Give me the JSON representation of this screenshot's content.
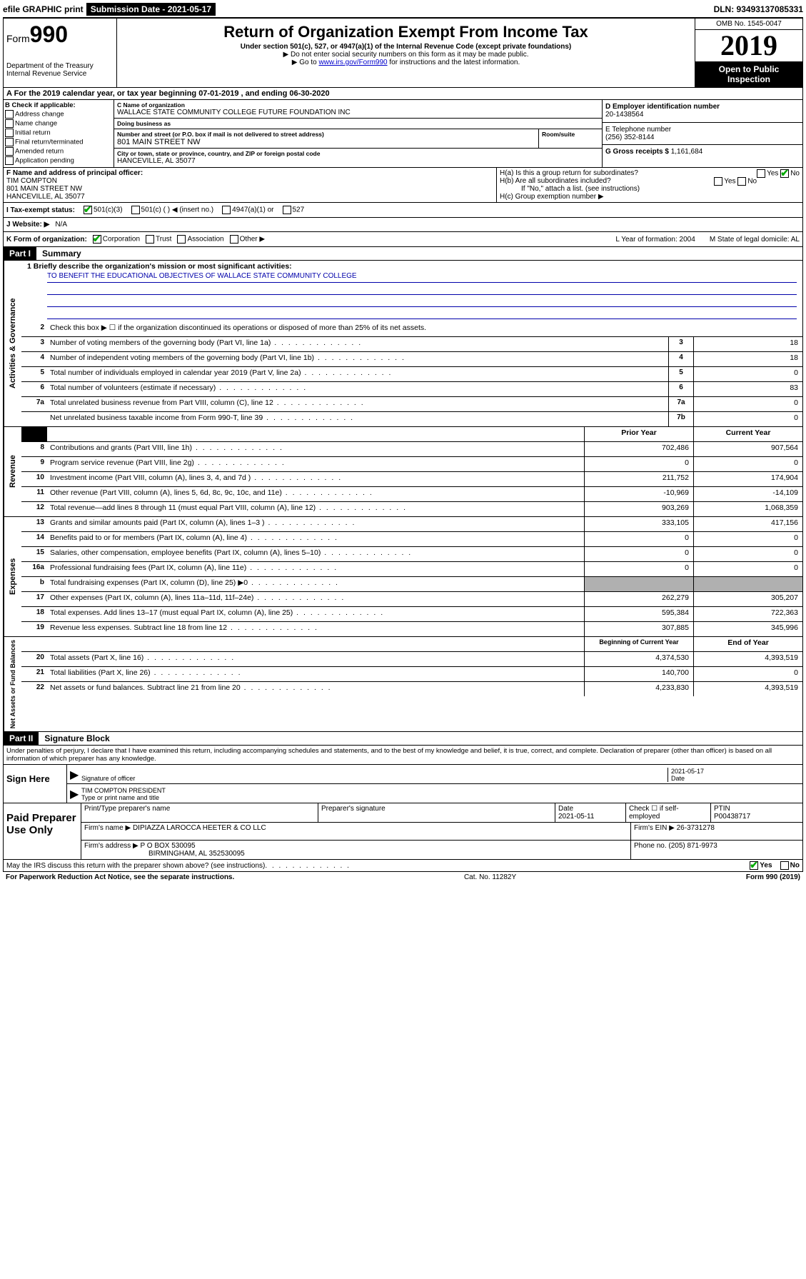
{
  "top": {
    "efile": "efile GRAPHIC print",
    "submission": "Submission Date - 2021-05-17",
    "dln": "DLN: 93493137085331"
  },
  "header": {
    "form_prefix": "Form",
    "form_number": "990",
    "dept": "Department of the Treasury\nInternal Revenue Service",
    "title": "Return of Organization Exempt From Income Tax",
    "subtitle": "Under section 501(c), 527, or 4947(a)(1) of the Internal Revenue Code (except private foundations)",
    "note1": "▶ Do not enter social security numbers on this form as it may be made public.",
    "note2_pre": "▶ Go to ",
    "note2_link": "www.irs.gov/Form990",
    "note2_post": " for instructions and the latest information.",
    "omb": "OMB No. 1545-0047",
    "year": "2019",
    "open": "Open to Public Inspection"
  },
  "sectionA": "A   For the 2019 calendar year, or tax year beginning 07-01-2019    , and ending 06-30-2020",
  "boxB": {
    "label": "B Check if applicable:",
    "opts": [
      "Address change",
      "Name change",
      "Initial return",
      "Final return/terminated",
      "Amended return",
      "Application pending"
    ]
  },
  "boxC": {
    "name_label": "C Name of organization",
    "name": "WALLACE STATE COMMUNITY COLLEGE FUTURE FOUNDATION INC",
    "dba_label": "Doing business as",
    "dba": "",
    "addr_label": "Number and street (or P.O. box if mail is not delivered to street address)",
    "room_label": "Room/suite",
    "addr": "801 MAIN STREET NW",
    "city_label": "City or town, state or province, country, and ZIP or foreign postal code",
    "city": "HANCEVILLE, AL  35077"
  },
  "boxD": {
    "label": "D Employer identification number",
    "val": "20-1438564"
  },
  "boxE": {
    "label": "E Telephone number",
    "val": "(256) 352-8144"
  },
  "boxG": {
    "label": "G Gross receipts $",
    "val": "1,161,684"
  },
  "boxF": {
    "label": "F Name and address of principal officer:",
    "name": "TIM COMPTON",
    "addr1": "801 MAIN STREET NW",
    "addr2": "HANCEVILLE, AL  35077"
  },
  "boxH": {
    "ha": "H(a)  Is this a group return for subordinates?",
    "hb": "H(b)  Are all subordinates included?",
    "hb_note": "If \"No,\" attach a list. (see instructions)",
    "hc": "H(c)  Group exemption number ▶"
  },
  "taxExempt": {
    "label": "I   Tax-exempt status:",
    "opt1": "501(c)(3)",
    "opt2": "501(c) (   ) ◀ (insert no.)",
    "opt3": "4947(a)(1) or",
    "opt4": "527"
  },
  "website": {
    "label": "J   Website: ▶",
    "val": "N/A"
  },
  "boxK": {
    "label": "K Form of organization:",
    "opts": [
      "Corporation",
      "Trust",
      "Association",
      "Other ▶"
    ],
    "L": "L Year of formation: 2004",
    "M": "M State of legal domicile: AL"
  },
  "part1": {
    "header": "Part I",
    "title": "Summary",
    "line1_label": "1  Briefly describe the organization's mission or most significant activities:",
    "line1_val": "TO BENEFIT THE EDUCATIONAL OBJECTIVES OF WALLACE STATE COMMUNITY COLLEGE",
    "line2": "Check this box ▶ ☐  if the organization discontinued its operations or disposed of more than 25% of its net assets.",
    "governance": [
      {
        "n": "3",
        "d": "Number of voting members of the governing body (Part VI, line 1a)",
        "b": "3",
        "v": "18"
      },
      {
        "n": "4",
        "d": "Number of independent voting members of the governing body (Part VI, line 1b)",
        "b": "4",
        "v": "18"
      },
      {
        "n": "5",
        "d": "Total number of individuals employed in calendar year 2019 (Part V, line 2a)",
        "b": "5",
        "v": "0"
      },
      {
        "n": "6",
        "d": "Total number of volunteers (estimate if necessary)",
        "b": "6",
        "v": "83"
      },
      {
        "n": "7a",
        "d": "Total unrelated business revenue from Part VIII, column (C), line 12",
        "b": "7a",
        "v": "0"
      },
      {
        "n": "",
        "d": "Net unrelated business taxable income from Form 990-T, line 39",
        "b": "7b",
        "v": "0"
      }
    ],
    "rev_hdr": {
      "prior": "Prior Year",
      "curr": "Current Year"
    },
    "revenue": [
      {
        "n": "8",
        "d": "Contributions and grants (Part VIII, line 1h)",
        "p": "702,486",
        "c": "907,564"
      },
      {
        "n": "9",
        "d": "Program service revenue (Part VIII, line 2g)",
        "p": "0",
        "c": "0"
      },
      {
        "n": "10",
        "d": "Investment income (Part VIII, column (A), lines 3, 4, and 7d )",
        "p": "211,752",
        "c": "174,904"
      },
      {
        "n": "11",
        "d": "Other revenue (Part VIII, column (A), lines 5, 6d, 8c, 9c, 10c, and 11e)",
        "p": "-10,969",
        "c": "-14,109"
      },
      {
        "n": "12",
        "d": "Total revenue—add lines 8 through 11 (must equal Part VIII, column (A), line 12)",
        "p": "903,269",
        "c": "1,068,359"
      }
    ],
    "expenses": [
      {
        "n": "13",
        "d": "Grants and similar amounts paid (Part IX, column (A), lines 1–3 )",
        "p": "333,105",
        "c": "417,156"
      },
      {
        "n": "14",
        "d": "Benefits paid to or for members (Part IX, column (A), line 4)",
        "p": "0",
        "c": "0"
      },
      {
        "n": "15",
        "d": "Salaries, other compensation, employee benefits (Part IX, column (A), lines 5–10)",
        "p": "0",
        "c": "0"
      },
      {
        "n": "16a",
        "d": "Professional fundraising fees (Part IX, column (A), line 11e)",
        "p": "0",
        "c": "0"
      },
      {
        "n": "b",
        "d": "Total fundraising expenses (Part IX, column (D), line 25) ▶0",
        "p": "",
        "c": "",
        "shade": true
      },
      {
        "n": "17",
        "d": "Other expenses (Part IX, column (A), lines 11a–11d, 11f–24e)",
        "p": "262,279",
        "c": "305,207"
      },
      {
        "n": "18",
        "d": "Total expenses. Add lines 13–17 (must equal Part IX, column (A), line 25)",
        "p": "595,384",
        "c": "722,363"
      },
      {
        "n": "19",
        "d": "Revenue less expenses. Subtract line 18 from line 12",
        "p": "307,885",
        "c": "345,996"
      }
    ],
    "net_hdr": {
      "prior": "Beginning of Current Year",
      "curr": "End of Year"
    },
    "net": [
      {
        "n": "20",
        "d": "Total assets (Part X, line 16)",
        "p": "4,374,530",
        "c": "4,393,519"
      },
      {
        "n": "21",
        "d": "Total liabilities (Part X, line 26)",
        "p": "140,700",
        "c": "0"
      },
      {
        "n": "22",
        "d": "Net assets or fund balances. Subtract line 21 from line 20",
        "p": "4,233,830",
        "c": "4,393,519"
      }
    ]
  },
  "part2": {
    "header": "Part II",
    "title": "Signature Block",
    "perjury": "Under penalties of perjury, I declare that I have examined this return, including accompanying schedules and statements, and to the best of my knowledge and belief, it is true, correct, and complete. Declaration of preparer (other than officer) is based on all information of which preparer has any knowledge.",
    "sign_here": "Sign Here",
    "sig_officer": "Signature of officer",
    "sig_date": "2021-05-17",
    "sig_date_label": "Date",
    "officer_name": "TIM COMPTON PRESIDENT",
    "officer_label": "Type or print name and title",
    "paid": "Paid Preparer Use Only",
    "prep_name_label": "Print/Type preparer's name",
    "prep_sig_label": "Preparer's signature",
    "prep_date_label": "Date",
    "prep_date": "2021-05-11",
    "prep_check": "Check ☐ if self-employed",
    "ptin_label": "PTIN",
    "ptin": "P00438717",
    "firm_name_label": "Firm's name    ▶",
    "firm_name": "DIPIAZZA LAROCCA HEETER & CO LLC",
    "firm_ein_label": "Firm's EIN ▶",
    "firm_ein": "26-3731278",
    "firm_addr_label": "Firm's address ▶",
    "firm_addr": "P O BOX 530095",
    "firm_addr2": "BIRMINGHAM, AL  352530095",
    "phone_label": "Phone no.",
    "phone": "(205) 871-9973"
  },
  "footer": {
    "discuss": "May the IRS discuss this return with the preparer shown above? (see instructions)",
    "yes": "Yes",
    "no": "No",
    "paperwork": "For Paperwork Reduction Act Notice, see the separate instructions.",
    "cat": "Cat. No. 11282Y",
    "form": "Form 990 (2019)"
  }
}
